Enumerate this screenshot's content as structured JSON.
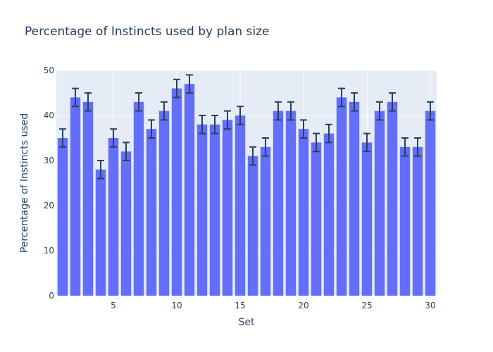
{
  "chart_data": {
    "type": "bar",
    "title": "Percentage of Instincts used by plan size",
    "xlabel": "Set",
    "ylabel": "Percentage of Instincts used",
    "x": [
      1,
      2,
      3,
      4,
      5,
      6,
      7,
      8,
      9,
      10,
      11,
      12,
      13,
      14,
      15,
      16,
      17,
      18,
      19,
      20,
      21,
      22,
      23,
      24,
      25,
      26,
      27,
      28,
      29,
      30
    ],
    "values": [
      35,
      44,
      43,
      28,
      35,
      32,
      43,
      37,
      41,
      46,
      47,
      38,
      38,
      39,
      40,
      31,
      33,
      41,
      41,
      37,
      34,
      36,
      44,
      43,
      34,
      41,
      43,
      33,
      33,
      41
    ],
    "error": 2,
    "xlim": [
      0.5,
      30.5
    ],
    "ylim": [
      0,
      50
    ],
    "x_ticks": [
      5,
      10,
      15,
      20,
      25,
      30
    ],
    "y_ticks": [
      0,
      10,
      20,
      30,
      40,
      50
    ],
    "grid": true,
    "colors": {
      "bar": "#636efa",
      "plot_bg": "#e5ecf6",
      "grid": "#ffffff",
      "error_bar": "#2a3f5f",
      "text": "#2a3f5f"
    }
  }
}
